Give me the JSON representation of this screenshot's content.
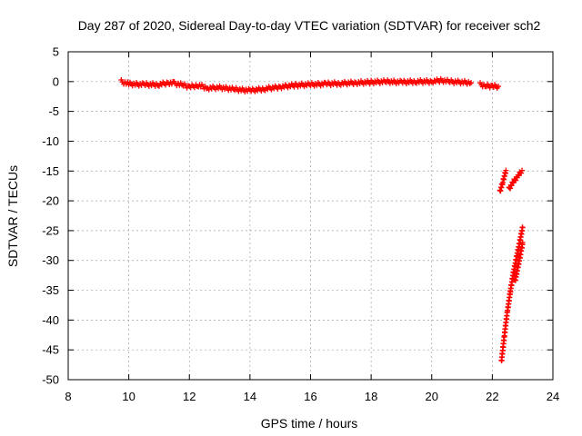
{
  "chart_data": {
    "type": "scatter",
    "title": "Day 287 of 2020, Sidereal Day-to-day VTEC variation (SDTVAR) for receiver sch2",
    "xlabel": "GPS time / hours",
    "ylabel": "SDTVAR / TECUs",
    "xlim": [
      8,
      24
    ],
    "ylim": [
      -50,
      5
    ],
    "xticks": [
      "8",
      "10",
      "12",
      "14",
      "16",
      "18",
      "20",
      "22",
      "24"
    ],
    "yticks": [
      "5",
      "0",
      "-5",
      "-10",
      "-15",
      "-20",
      "-25",
      "-30",
      "-35",
      "-40",
      "-45",
      "-50"
    ],
    "grid": true,
    "marker": "plus",
    "color": "#ff0000",
    "segments": [
      {
        "x": [
          9.75,
          10.0,
          10.5,
          11.0,
          11.3,
          11.5,
          11.8,
          12.0,
          12.3,
          12.6,
          13.0,
          13.5,
          14.0,
          14.5,
          15.0,
          15.5,
          16.0,
          16.5,
          17.0,
          17.5,
          18.0,
          18.5,
          19.0,
          19.5,
          20.0,
          20.3,
          20.6,
          21.0,
          21.3
        ],
        "y": [
          0.0,
          -0.4,
          -0.5,
          -0.5,
          -0.2,
          -0.3,
          -0.6,
          -0.9,
          -0.6,
          -1.1,
          -1.0,
          -1.3,
          -1.5,
          -1.2,
          -0.9,
          -0.6,
          -0.5,
          -0.4,
          -0.3,
          -0.2,
          -0.1,
          0.0,
          -0.1,
          0.0,
          0.0,
          0.2,
          0.0,
          -0.1,
          -0.2
        ]
      },
      {
        "x": [
          21.6,
          21.8,
          22.0,
          22.2
        ],
        "y": [
          -0.5,
          -0.7,
          -0.8,
          -0.8
        ]
      },
      {
        "x": [
          22.25,
          22.35,
          22.45
        ],
        "y": [
          -18.5,
          -16.8,
          -14.9
        ]
      },
      {
        "x": [
          22.55,
          22.7,
          22.85,
          22.98
        ],
        "y": [
          -18.0,
          -16.8,
          -15.8,
          -14.9
        ]
      },
      {
        "x": [
          22.3,
          22.4,
          22.5,
          22.6,
          22.7,
          22.8,
          22.9,
          23.0
        ],
        "y": [
          -47.0,
          -42.5,
          -38.5,
          -35.0,
          -32.0,
          -29.5,
          -27.0,
          -24.5
        ]
      },
      {
        "x": [
          22.75,
          22.85,
          22.95,
          23.0
        ],
        "y": [
          -33.5,
          -31.0,
          -28.5,
          -27.0
        ]
      }
    ]
  }
}
